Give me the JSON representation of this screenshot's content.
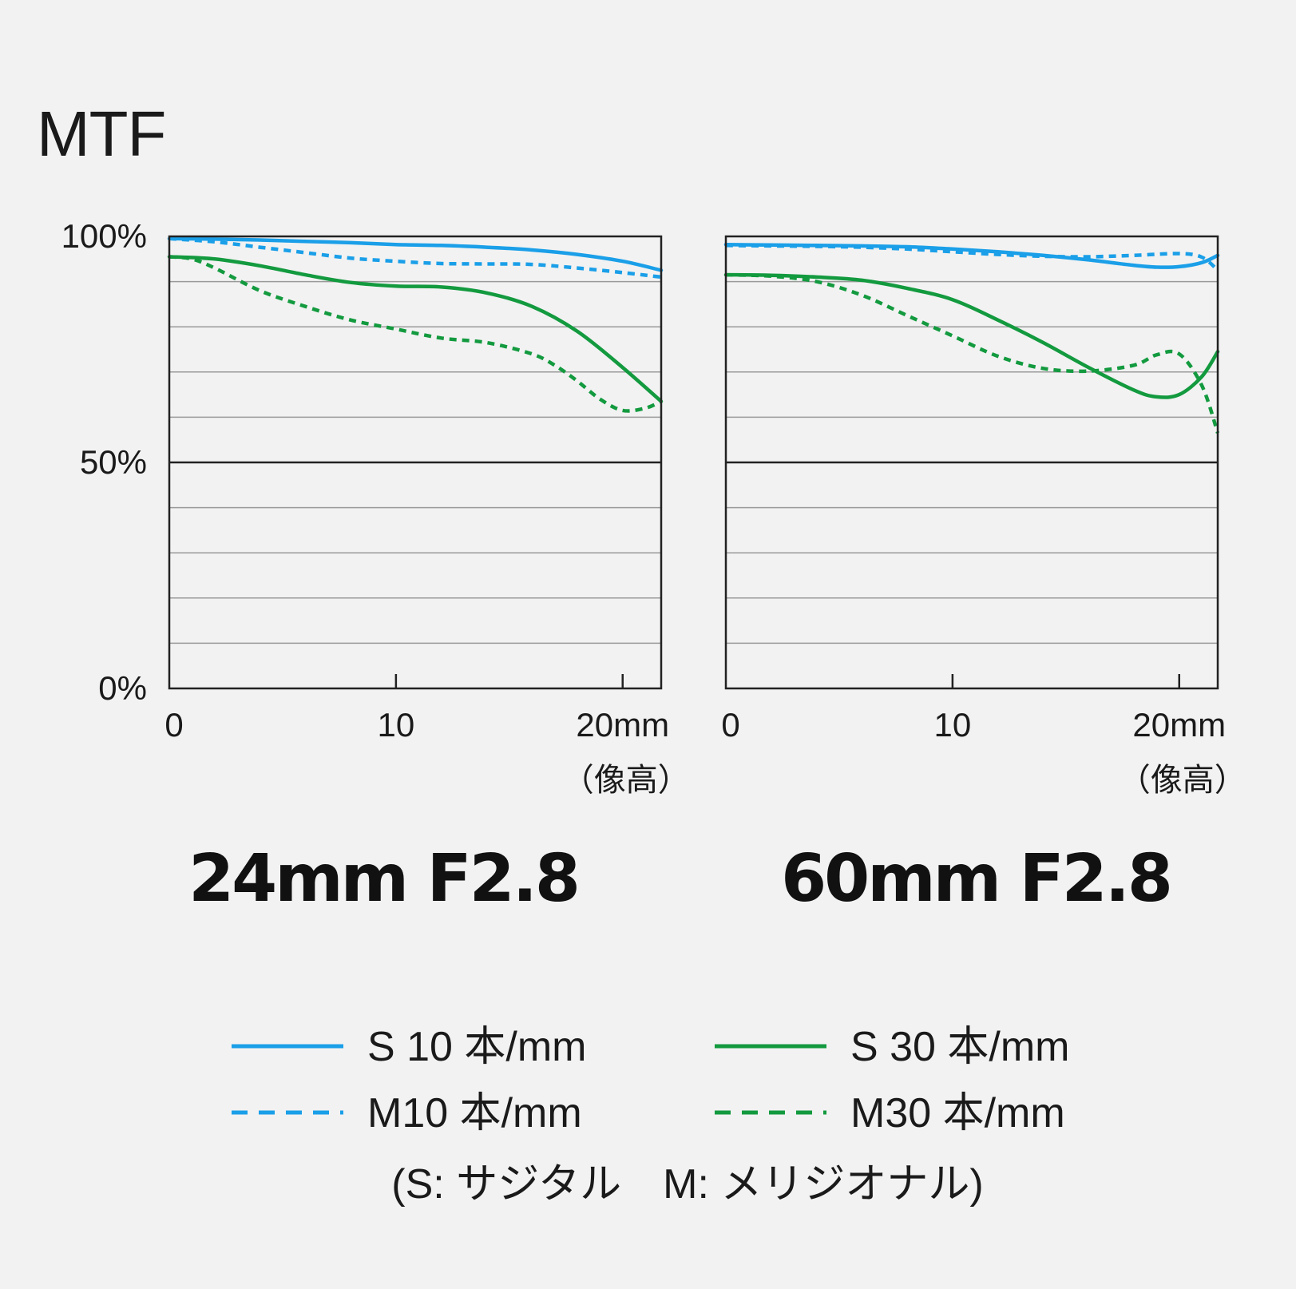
{
  "page_title": "MTF",
  "legend": {
    "items": [
      {
        "label": "S 10 本/mm",
        "color": "#1a9fe8",
        "style": "solid"
      },
      {
        "label": "S 30 本/mm",
        "color": "#139a3f",
        "style": "solid"
      },
      {
        "label": "M10 本/mm",
        "color": "#1a9fe8",
        "style": "dashed"
      },
      {
        "label": "M30 本/mm",
        "color": "#139a3f",
        "style": "dashed"
      }
    ],
    "note": "(S: サジタル　M: メリジオナル)"
  },
  "chart_data": [
    {
      "type": "line",
      "title": "24mm F2.8",
      "y_ticks": [
        "100%",
        "50%",
        "0%"
      ],
      "x_ticks": [
        "0",
        "10",
        "20mm"
      ],
      "xlabel": "（像高）",
      "xlim": [
        0,
        21.7
      ],
      "ylim": [
        0,
        100
      ],
      "grid": true,
      "series": [
        {
          "name": "S 10 本/mm",
          "color": "#1a9fe8",
          "dash": false,
          "x": [
            0,
            2,
            4,
            6,
            8,
            10,
            12,
            14,
            16,
            18,
            20,
            21.7
          ],
          "y": [
            99.5,
            99.4,
            99.2,
            98.9,
            98.6,
            98.2,
            98.0,
            97.6,
            97.0,
            96.0,
            94.5,
            92.5
          ]
        },
        {
          "name": "M10 本/mm",
          "color": "#1a9fe8",
          "dash": true,
          "x": [
            0,
            2,
            4,
            6,
            8,
            10,
            12,
            14,
            16,
            18,
            20,
            21.7
          ],
          "y": [
            99.5,
            98.8,
            97.6,
            96.4,
            95.2,
            94.5,
            94.0,
            93.9,
            93.8,
            93.0,
            92.0,
            91.0
          ]
        },
        {
          "name": "S 30 本/mm",
          "color": "#139a3f",
          "dash": false,
          "x": [
            0,
            2,
            4,
            6,
            8,
            10,
            12,
            14,
            16,
            18,
            20,
            21.7
          ],
          "y": [
            95.5,
            95.0,
            93.5,
            91.5,
            89.8,
            89.0,
            88.8,
            87.5,
            84.5,
            79.0,
            71.0,
            63.5
          ]
        },
        {
          "name": "M30 本/mm",
          "color": "#139a3f",
          "dash": true,
          "x": [
            0,
            1,
            2,
            4,
            6,
            8,
            10,
            12,
            14,
            16,
            17,
            18,
            19,
            20,
            21,
            21.7
          ],
          "y": [
            95.5,
            95.0,
            93.0,
            88.0,
            84.5,
            81.5,
            79.5,
            77.5,
            76.5,
            74.0,
            71.5,
            68.0,
            64.0,
            61.5,
            62.0,
            63.5
          ]
        }
      ]
    },
    {
      "type": "line",
      "title": "60mm F2.8",
      "y_ticks": [],
      "x_ticks": [
        "0",
        "10",
        "20mm"
      ],
      "xlabel": "（像高）",
      "xlim": [
        0,
        21.7
      ],
      "ylim": [
        0,
        100
      ],
      "grid": true,
      "series": [
        {
          "name": "S 10 本/mm",
          "color": "#1a9fe8",
          "dash": false,
          "x": [
            0,
            2,
            4,
            6,
            8,
            10,
            12,
            14,
            16,
            18,
            19,
            20,
            21,
            21.7
          ],
          "y": [
            98.2,
            98.1,
            98.0,
            97.9,
            97.7,
            97.2,
            96.6,
            95.8,
            94.8,
            93.6,
            93.2,
            93.3,
            94.2,
            95.8
          ]
        },
        {
          "name": "M10 本/mm",
          "color": "#1a9fe8",
          "dash": true,
          "x": [
            0,
            2,
            4,
            6,
            8,
            10,
            12,
            14,
            16,
            18,
            20,
            21,
            21.7
          ],
          "y": [
            98.0,
            97.9,
            97.8,
            97.6,
            97.2,
            96.6,
            96.0,
            95.6,
            95.5,
            95.8,
            96.2,
            95.4,
            92.5
          ]
        },
        {
          "name": "S 30 本/mm",
          "color": "#139a3f",
          "dash": false,
          "x": [
            0,
            2,
            4,
            6,
            8,
            10,
            12,
            14,
            16,
            18,
            19,
            20,
            21,
            21.7
          ],
          "y": [
            91.5,
            91.4,
            91.0,
            90.3,
            88.5,
            86.0,
            81.5,
            76.5,
            71.0,
            66.0,
            64.5,
            65.0,
            69.0,
            74.5
          ]
        },
        {
          "name": "M30 本/mm",
          "color": "#139a3f",
          "dash": true,
          "x": [
            0,
            2,
            4,
            6,
            8,
            10,
            12,
            14,
            16,
            18,
            19,
            20,
            21,
            21.7
          ],
          "y": [
            91.5,
            91.2,
            90.0,
            87.0,
            82.5,
            78.0,
            73.5,
            70.8,
            70.2,
            71.5,
            73.8,
            74.0,
            67.0,
            56.5
          ]
        }
      ]
    }
  ]
}
